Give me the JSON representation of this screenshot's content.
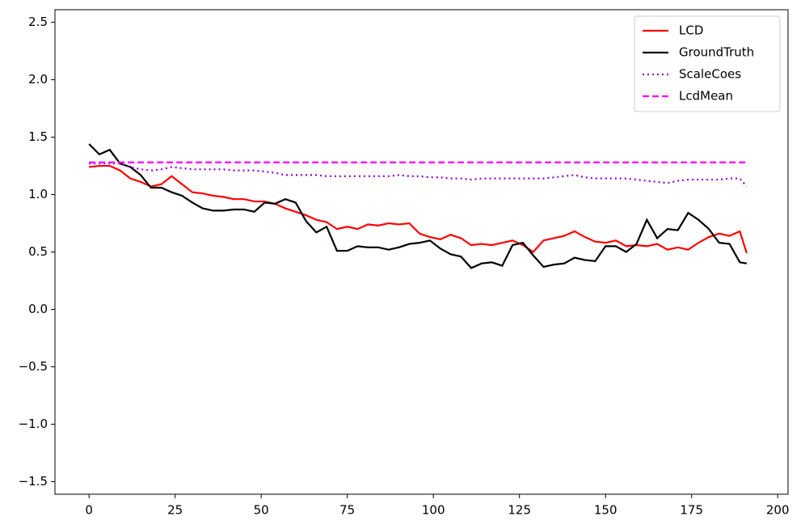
{
  "chart_data": {
    "type": "line",
    "x": [
      0,
      3,
      6,
      9,
      12,
      15,
      18,
      21,
      24,
      27,
      30,
      33,
      36,
      39,
      42,
      45,
      48,
      51,
      54,
      57,
      60,
      63,
      66,
      69,
      72,
      75,
      78,
      81,
      84,
      87,
      90,
      93,
      96,
      99,
      102,
      105,
      108,
      111,
      114,
      117,
      120,
      123,
      126,
      129,
      132,
      135,
      138,
      141,
      144,
      147,
      150,
      153,
      156,
      159,
      162,
      165,
      168,
      171,
      174,
      177,
      180,
      183,
      186,
      189,
      191
    ],
    "series": [
      {
        "name": "LCD",
        "color": "#ff0000",
        "style": "solid",
        "values": [
          1.24,
          1.25,
          1.25,
          1.21,
          1.14,
          1.11,
          1.07,
          1.09,
          1.16,
          1.09,
          1.02,
          1.01,
          0.99,
          0.98,
          0.96,
          0.96,
          0.94,
          0.94,
          0.92,
          0.88,
          0.85,
          0.82,
          0.78,
          0.76,
          0.7,
          0.72,
          0.7,
          0.74,
          0.73,
          0.75,
          0.74,
          0.75,
          0.66,
          0.63,
          0.61,
          0.65,
          0.62,
          0.56,
          0.57,
          0.56,
          0.58,
          0.6,
          0.56,
          0.5,
          0.6,
          0.62,
          0.64,
          0.68,
          0.63,
          0.59,
          0.58,
          0.6,
          0.55,
          0.56,
          0.55,
          0.57,
          0.52,
          0.54,
          0.52,
          0.58,
          0.63,
          0.66,
          0.64,
          0.68,
          0.49
        ]
      },
      {
        "name": "GroundTruth",
        "color": "#000000",
        "style": "solid",
        "values": [
          1.44,
          1.35,
          1.39,
          1.27,
          1.24,
          1.17,
          1.06,
          1.06,
          1.02,
          0.99,
          0.93,
          0.88,
          0.86,
          0.86,
          0.87,
          0.87,
          0.85,
          0.93,
          0.92,
          0.96,
          0.93,
          0.77,
          0.67,
          0.72,
          0.51,
          0.51,
          0.55,
          0.54,
          0.54,
          0.52,
          0.54,
          0.57,
          0.58,
          0.6,
          0.53,
          0.48,
          0.46,
          0.36,
          0.4,
          0.41,
          0.38,
          0.56,
          0.58,
          0.47,
          0.37,
          0.39,
          0.4,
          0.45,
          0.43,
          0.42,
          0.55,
          0.55,
          0.5,
          0.57,
          0.78,
          0.62,
          0.7,
          0.69,
          0.84,
          0.78,
          0.7,
          0.58,
          0.57,
          0.41,
          0.4
        ]
      },
      {
        "name": "ScaleCoes",
        "color": "#9400d3",
        "style": "dotted",
        "values": [
          1.27,
          1.27,
          1.27,
          1.27,
          1.24,
          1.22,
          1.21,
          1.22,
          1.24,
          1.23,
          1.22,
          1.22,
          1.22,
          1.22,
          1.21,
          1.21,
          1.21,
          1.2,
          1.19,
          1.17,
          1.17,
          1.17,
          1.17,
          1.16,
          1.16,
          1.16,
          1.16,
          1.16,
          1.16,
          1.16,
          1.17,
          1.16,
          1.16,
          1.15,
          1.15,
          1.14,
          1.14,
          1.13,
          1.14,
          1.14,
          1.14,
          1.14,
          1.14,
          1.14,
          1.14,
          1.15,
          1.16,
          1.17,
          1.15,
          1.14,
          1.14,
          1.14,
          1.14,
          1.13,
          1.12,
          1.11,
          1.1,
          1.12,
          1.13,
          1.13,
          1.13,
          1.13,
          1.14,
          1.14,
          1.07
        ]
      },
      {
        "name": "LcdMean",
        "color": "#ff00ff",
        "style": "dashed",
        "values": [
          1.28,
          1.28,
          1.28,
          1.28,
          1.28,
          1.28,
          1.28,
          1.28,
          1.28,
          1.28,
          1.28,
          1.28,
          1.28,
          1.28,
          1.28,
          1.28,
          1.28,
          1.28,
          1.28,
          1.28,
          1.28,
          1.28,
          1.28,
          1.28,
          1.28,
          1.28,
          1.28,
          1.28,
          1.28,
          1.28,
          1.28,
          1.28,
          1.28,
          1.28,
          1.28,
          1.28,
          1.28,
          1.28,
          1.28,
          1.28,
          1.28,
          1.28,
          1.28,
          1.28,
          1.28,
          1.28,
          1.28,
          1.28,
          1.28,
          1.28,
          1.28,
          1.28,
          1.28,
          1.28,
          1.28,
          1.28,
          1.28,
          1.28,
          1.28,
          1.28,
          1.28,
          1.28,
          1.28,
          1.28,
          1.28
        ]
      }
    ],
    "xlim": [
      -9.9,
      203
    ],
    "ylim": [
      -1.61,
      2.61
    ],
    "xticks": [
      0,
      25,
      50,
      75,
      100,
      125,
      150,
      175,
      200
    ],
    "yticks": [
      {
        "value": -1.5,
        "label": "−1.5"
      },
      {
        "value": -1,
        "label": "−1.0"
      },
      {
        "value": -0.5,
        "label": "−0.5"
      },
      {
        "value": 0,
        "label": "0.0"
      },
      {
        "value": 0.5,
        "label": "0.5"
      },
      {
        "value": 1,
        "label": "1.0"
      },
      {
        "value": 1.5,
        "label": "1.5"
      },
      {
        "value": 2,
        "label": "2.0"
      },
      {
        "value": 2.5,
        "label": "2.5"
      }
    ],
    "legend": "upper right",
    "grid": false
  }
}
